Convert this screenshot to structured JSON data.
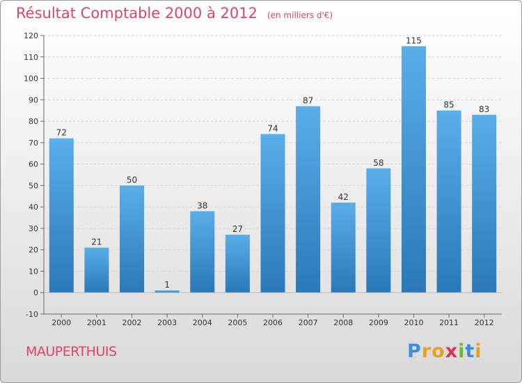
{
  "chart_data": {
    "type": "bar",
    "title": "Résultat Comptable 2000 à 2012",
    "subtitle": "(en milliers d'€)",
    "categories": [
      "2000",
      "2001",
      "2002",
      "2003",
      "2004",
      "2005",
      "2006",
      "2007",
      "2008",
      "2009",
      "2010",
      "2011",
      "2012"
    ],
    "values": [
      72,
      21,
      50,
      1,
      38,
      27,
      74,
      87,
      42,
      58,
      115,
      85,
      83
    ],
    "ylim": [
      -10,
      120
    ],
    "yticks": [
      -10,
      0,
      10,
      20,
      30,
      40,
      50,
      60,
      70,
      80,
      90,
      100,
      110,
      120
    ],
    "grid": true,
    "bar_color_top": "#5aaee8",
    "bar_color_bottom": "#2a78b8"
  },
  "place_name": "MAUPERTHUIS",
  "logo": {
    "text": "Proxiti",
    "letters": [
      {
        "ch": "P",
        "color": "#3a8fd8"
      },
      {
        "ch": "r",
        "color": "#e8a020"
      },
      {
        "ch": "o",
        "color": "#e8a020"
      },
      {
        "ch": "x",
        "color": "#dd3355"
      },
      {
        "ch": "i",
        "color": "#66bb33"
      },
      {
        "ch": "t",
        "color": "#3a8fd8"
      },
      {
        "ch": "i",
        "color": "#e8a020"
      }
    ]
  },
  "title_color": "#dd4466"
}
